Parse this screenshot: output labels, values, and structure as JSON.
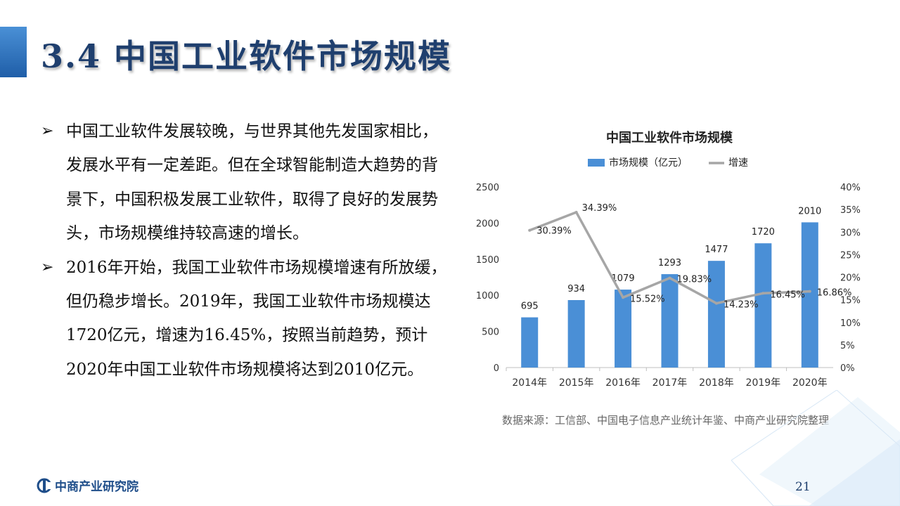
{
  "slide": {
    "title": "3.4 中国工业软件市场规模",
    "bullets": [
      "中国工业软件发展较晚，与世界其他先发国家相比，发展水平有一定差距。但在全球智能制造大趋势的背景下，中国积极发展工业软件，取得了良好的发展势头，市场规模维持较高速的增长。",
      "2016年开始，我国工业软件市场规模增速有所放缓，但仍稳步增长。2019年，我国工业软件市场规模达1720亿元，增速为16.45%，按照当前趋势，预计2020年中国工业软件市场规模将达到2010亿元。"
    ],
    "bullet_marker": "➢",
    "source": "数据来源：工信部、中国电子信息产业统计年鉴、中商产业研究院整理",
    "logo_text": "中商产业研究院",
    "page_number": "21"
  },
  "colors": {
    "title": "#1f3f6e",
    "bar": "#4a8fd6",
    "line": "#a6a6a6",
    "accent": "#2b6cb8"
  },
  "chart_data": {
    "type": "bar",
    "title": "中国工业软件市场规模",
    "categories": [
      "2014年",
      "2015年",
      "2016年",
      "2017年",
      "2018年",
      "2019年",
      "2020年"
    ],
    "series": [
      {
        "name": "市场规模（亿元）",
        "type": "bar",
        "axis": "left",
        "values": [
          695,
          934,
          1079,
          1293,
          1477,
          1720,
          2010
        ],
        "labels": [
          "695",
          "934",
          "1079",
          "1293",
          "1477",
          "1720",
          "2010"
        ]
      },
      {
        "name": "增速",
        "type": "line",
        "axis": "right",
        "values": [
          30.39,
          34.39,
          15.52,
          19.83,
          14.23,
          16.45,
          16.86
        ],
        "labels": [
          "30.39%",
          "34.39%",
          "15.52%",
          "19.83%",
          "14.23%",
          "16.45%",
          "16.86%"
        ]
      }
    ],
    "y_left": {
      "min": 0,
      "max": 2500,
      "ticks": [
        "0",
        "500",
        "1000",
        "1500",
        "2000",
        "2500"
      ]
    },
    "y_right": {
      "min": 0,
      "max": 40,
      "ticks": [
        "0%",
        "5%",
        "10%",
        "15%",
        "20%",
        "25%",
        "30%",
        "35%",
        "40%"
      ]
    },
    "legend_position": "top",
    "grid": false
  }
}
